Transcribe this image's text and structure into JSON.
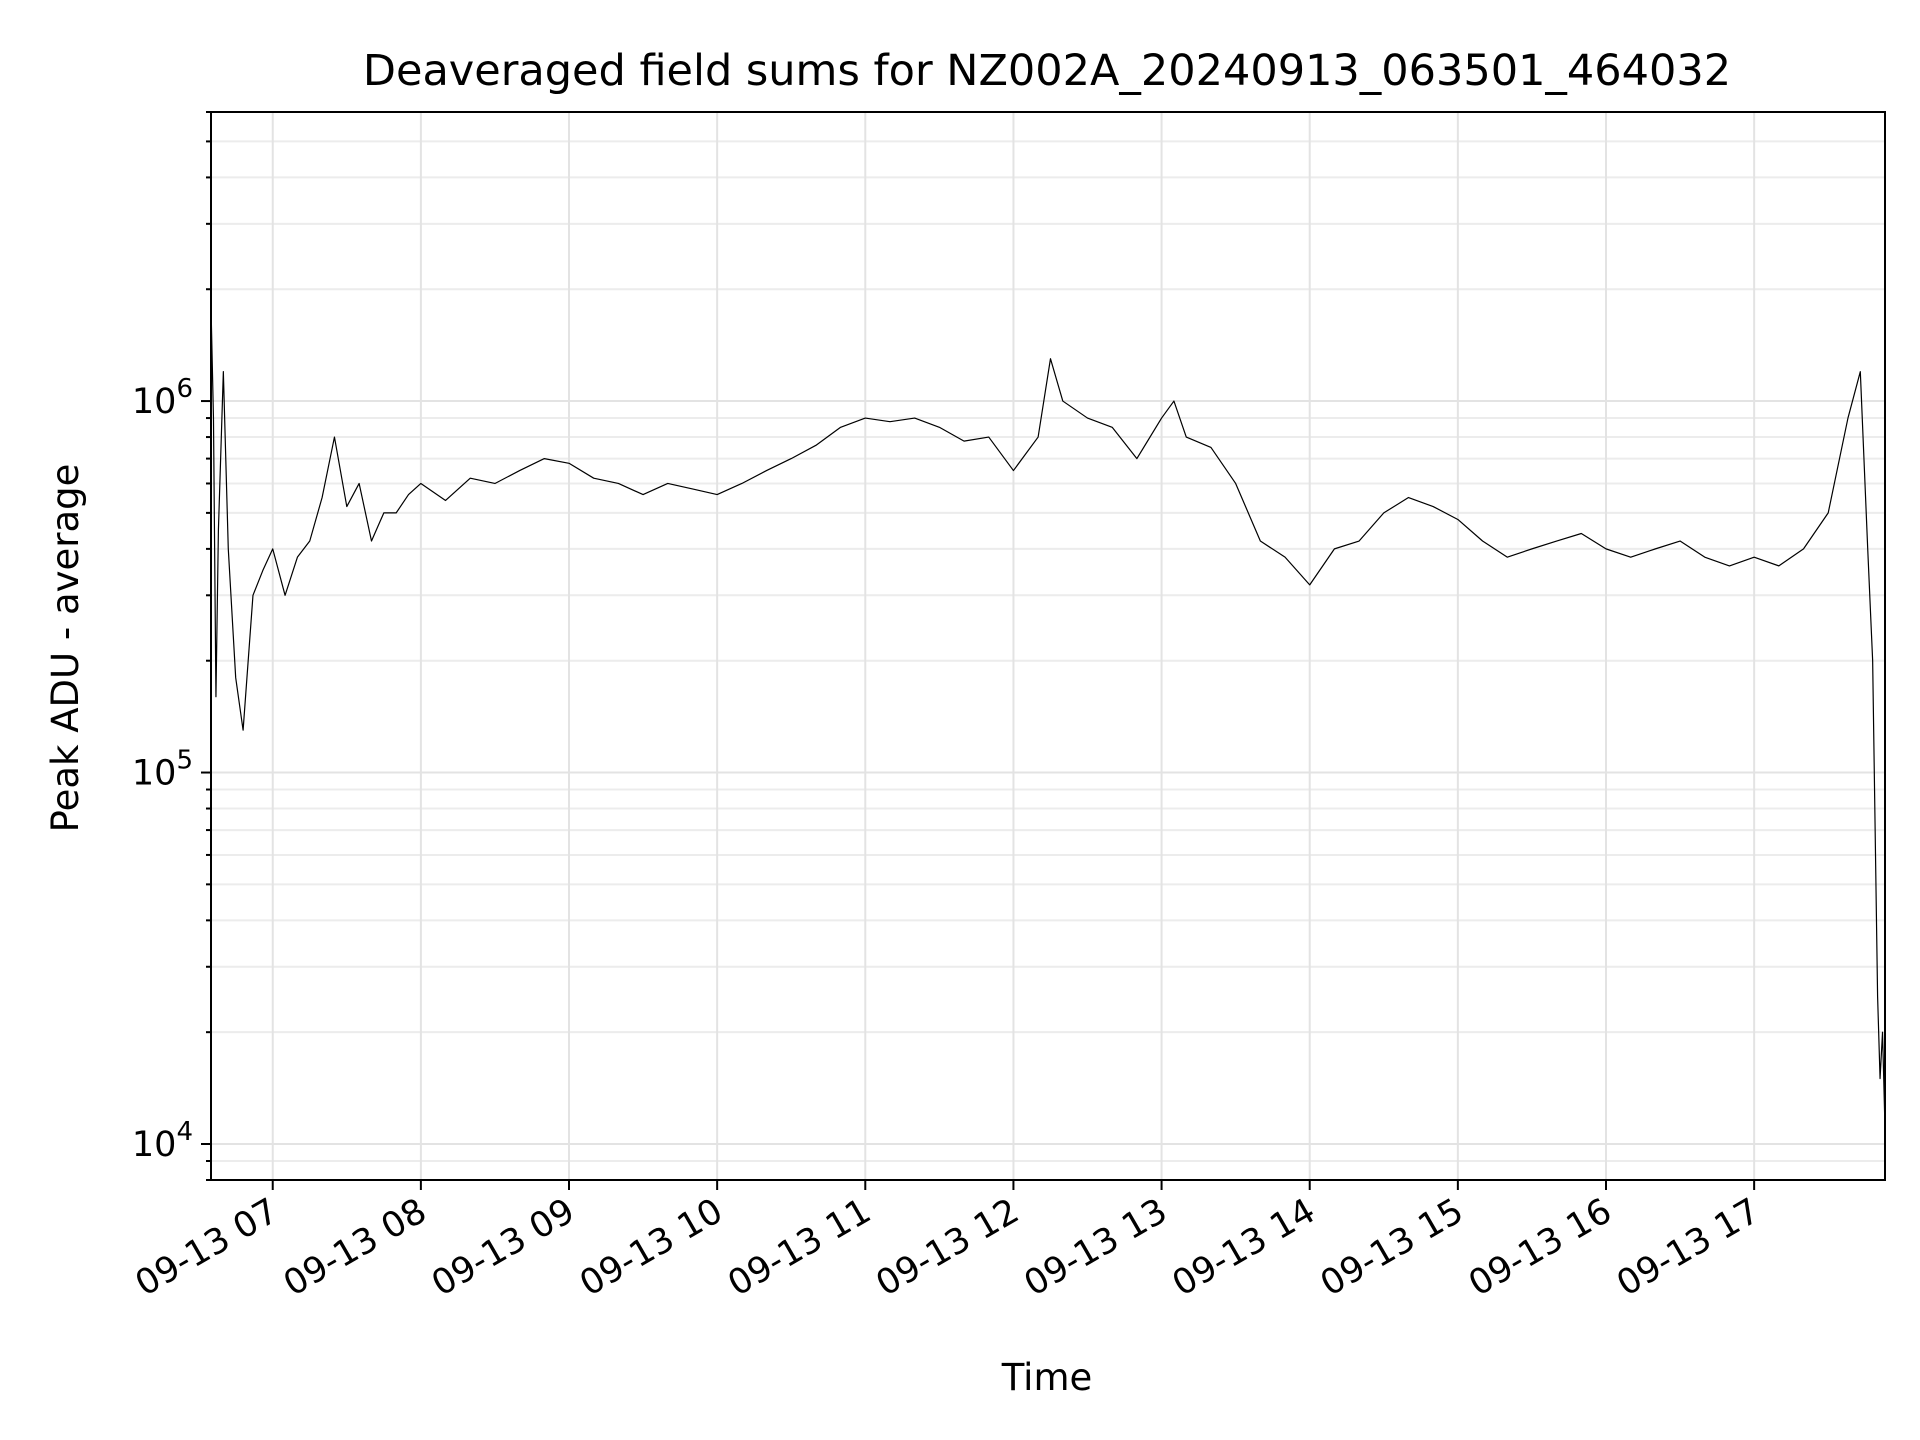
{
  "chart_data": {
    "type": "line",
    "title": "Deaveraged field sums for NZ002A_20240913_063501_464032",
    "xlabel": "Time",
    "ylabel": "Peak ADU - average",
    "xscale": "time",
    "yscale": "log",
    "xlim": [
      "2024-09-13 06:35",
      "2024-09-13 17:53"
    ],
    "ylim": [
      8000,
      6000000
    ],
    "grid": "major and minor",
    "legend": "none",
    "line_color": "#000000",
    "x_ticks": [
      {
        "t": "2024-09-13 07:00",
        "label": "09-13 07"
      },
      {
        "t": "2024-09-13 08:00",
        "label": "09-13 08"
      },
      {
        "t": "2024-09-13 09:00",
        "label": "09-13 09"
      },
      {
        "t": "2024-09-13 10:00",
        "label": "09-13 10"
      },
      {
        "t": "2024-09-13 11:00",
        "label": "09-13 11"
      },
      {
        "t": "2024-09-13 12:00",
        "label": "09-13 12"
      },
      {
        "t": "2024-09-13 13:00",
        "label": "09-13 13"
      },
      {
        "t": "2024-09-13 14:00",
        "label": "09-13 14"
      },
      {
        "t": "2024-09-13 15:00",
        "label": "09-13 15"
      },
      {
        "t": "2024-09-13 16:00",
        "label": "09-13 16"
      },
      {
        "t": "2024-09-13 17:00",
        "label": "09-13 17"
      }
    ],
    "y_ticks": [
      {
        "value": 10000,
        "base": "10",
        "exp": "4"
      },
      {
        "value": 100000,
        "base": "10",
        "exp": "5"
      },
      {
        "value": 1000000,
        "base": "10",
        "exp": "6"
      }
    ],
    "series": [
      {
        "points": [
          [
            "2024-09-13 06:35",
            1800000
          ],
          [
            "2024-09-13 06:36",
            900000
          ],
          [
            "2024-09-13 06:37",
            160000
          ],
          [
            "2024-09-13 06:38",
            450000
          ],
          [
            "2024-09-13 06:40",
            1200000
          ],
          [
            "2024-09-13 06:42",
            400000
          ],
          [
            "2024-09-13 06:45",
            180000
          ],
          [
            "2024-09-13 06:48",
            130000
          ],
          [
            "2024-09-13 06:52",
            300000
          ],
          [
            "2024-09-13 06:56",
            350000
          ],
          [
            "2024-09-13 07:00",
            400000
          ],
          [
            "2024-09-13 07:05",
            300000
          ],
          [
            "2024-09-13 07:10",
            380000
          ],
          [
            "2024-09-13 07:15",
            420000
          ],
          [
            "2024-09-13 07:20",
            550000
          ],
          [
            "2024-09-13 07:25",
            800000
          ],
          [
            "2024-09-13 07:30",
            520000
          ],
          [
            "2024-09-13 07:35",
            600000
          ],
          [
            "2024-09-13 07:40",
            420000
          ],
          [
            "2024-09-13 07:45",
            500000
          ],
          [
            "2024-09-13 07:50",
            500000
          ],
          [
            "2024-09-13 07:55",
            560000
          ],
          [
            "2024-09-13 08:00",
            600000
          ],
          [
            "2024-09-13 08:10",
            540000
          ],
          [
            "2024-09-13 08:20",
            620000
          ],
          [
            "2024-09-13 08:30",
            600000
          ],
          [
            "2024-09-13 08:40",
            650000
          ],
          [
            "2024-09-13 08:50",
            700000
          ],
          [
            "2024-09-13 09:00",
            680000
          ],
          [
            "2024-09-13 09:10",
            620000
          ],
          [
            "2024-09-13 09:20",
            600000
          ],
          [
            "2024-09-13 09:30",
            560000
          ],
          [
            "2024-09-13 09:40",
            600000
          ],
          [
            "2024-09-13 09:50",
            580000
          ],
          [
            "2024-09-13 10:00",
            560000
          ],
          [
            "2024-09-13 10:10",
            600000
          ],
          [
            "2024-09-13 10:20",
            650000
          ],
          [
            "2024-09-13 10:30",
            700000
          ],
          [
            "2024-09-13 10:40",
            760000
          ],
          [
            "2024-09-13 10:50",
            850000
          ],
          [
            "2024-09-13 11:00",
            900000
          ],
          [
            "2024-09-13 11:10",
            880000
          ],
          [
            "2024-09-13 11:20",
            900000
          ],
          [
            "2024-09-13 11:30",
            850000
          ],
          [
            "2024-09-13 11:40",
            780000
          ],
          [
            "2024-09-13 11:50",
            800000
          ],
          [
            "2024-09-13 12:00",
            650000
          ],
          [
            "2024-09-13 12:10",
            800000
          ],
          [
            "2024-09-13 12:15",
            1300000
          ],
          [
            "2024-09-13 12:20",
            1000000
          ],
          [
            "2024-09-13 12:30",
            900000
          ],
          [
            "2024-09-13 12:40",
            850000
          ],
          [
            "2024-09-13 12:50",
            700000
          ],
          [
            "2024-09-13 13:00",
            900000
          ],
          [
            "2024-09-13 13:05",
            1000000
          ],
          [
            "2024-09-13 13:10",
            800000
          ],
          [
            "2024-09-13 13:20",
            750000
          ],
          [
            "2024-09-13 13:30",
            600000
          ],
          [
            "2024-09-13 13:40",
            420000
          ],
          [
            "2024-09-13 13:50",
            380000
          ],
          [
            "2024-09-13 14:00",
            320000
          ],
          [
            "2024-09-13 14:10",
            400000
          ],
          [
            "2024-09-13 14:20",
            420000
          ],
          [
            "2024-09-13 14:30",
            500000
          ],
          [
            "2024-09-13 14:40",
            550000
          ],
          [
            "2024-09-13 14:50",
            520000
          ],
          [
            "2024-09-13 15:00",
            480000
          ],
          [
            "2024-09-13 15:10",
            420000
          ],
          [
            "2024-09-13 15:20",
            380000
          ],
          [
            "2024-09-13 15:30",
            400000
          ],
          [
            "2024-09-13 15:40",
            420000
          ],
          [
            "2024-09-13 15:50",
            440000
          ],
          [
            "2024-09-13 16:00",
            400000
          ],
          [
            "2024-09-13 16:10",
            380000
          ],
          [
            "2024-09-13 16:20",
            400000
          ],
          [
            "2024-09-13 16:30",
            420000
          ],
          [
            "2024-09-13 16:40",
            380000
          ],
          [
            "2024-09-13 16:50",
            360000
          ],
          [
            "2024-09-13 17:00",
            380000
          ],
          [
            "2024-09-13 17:10",
            360000
          ],
          [
            "2024-09-13 17:20",
            400000
          ],
          [
            "2024-09-13 17:30",
            500000
          ],
          [
            "2024-09-13 17:38",
            900000
          ],
          [
            "2024-09-13 17:43",
            1200000
          ],
          [
            "2024-09-13 17:46",
            400000
          ],
          [
            "2024-09-13 17:48",
            200000
          ],
          [
            "2024-09-13 17:50",
            25000
          ],
          [
            "2024-09-13 17:51",
            15000
          ],
          [
            "2024-09-13 17:52",
            20000
          ],
          [
            "2024-09-13 17:53",
            11000
          ]
        ]
      }
    ]
  }
}
